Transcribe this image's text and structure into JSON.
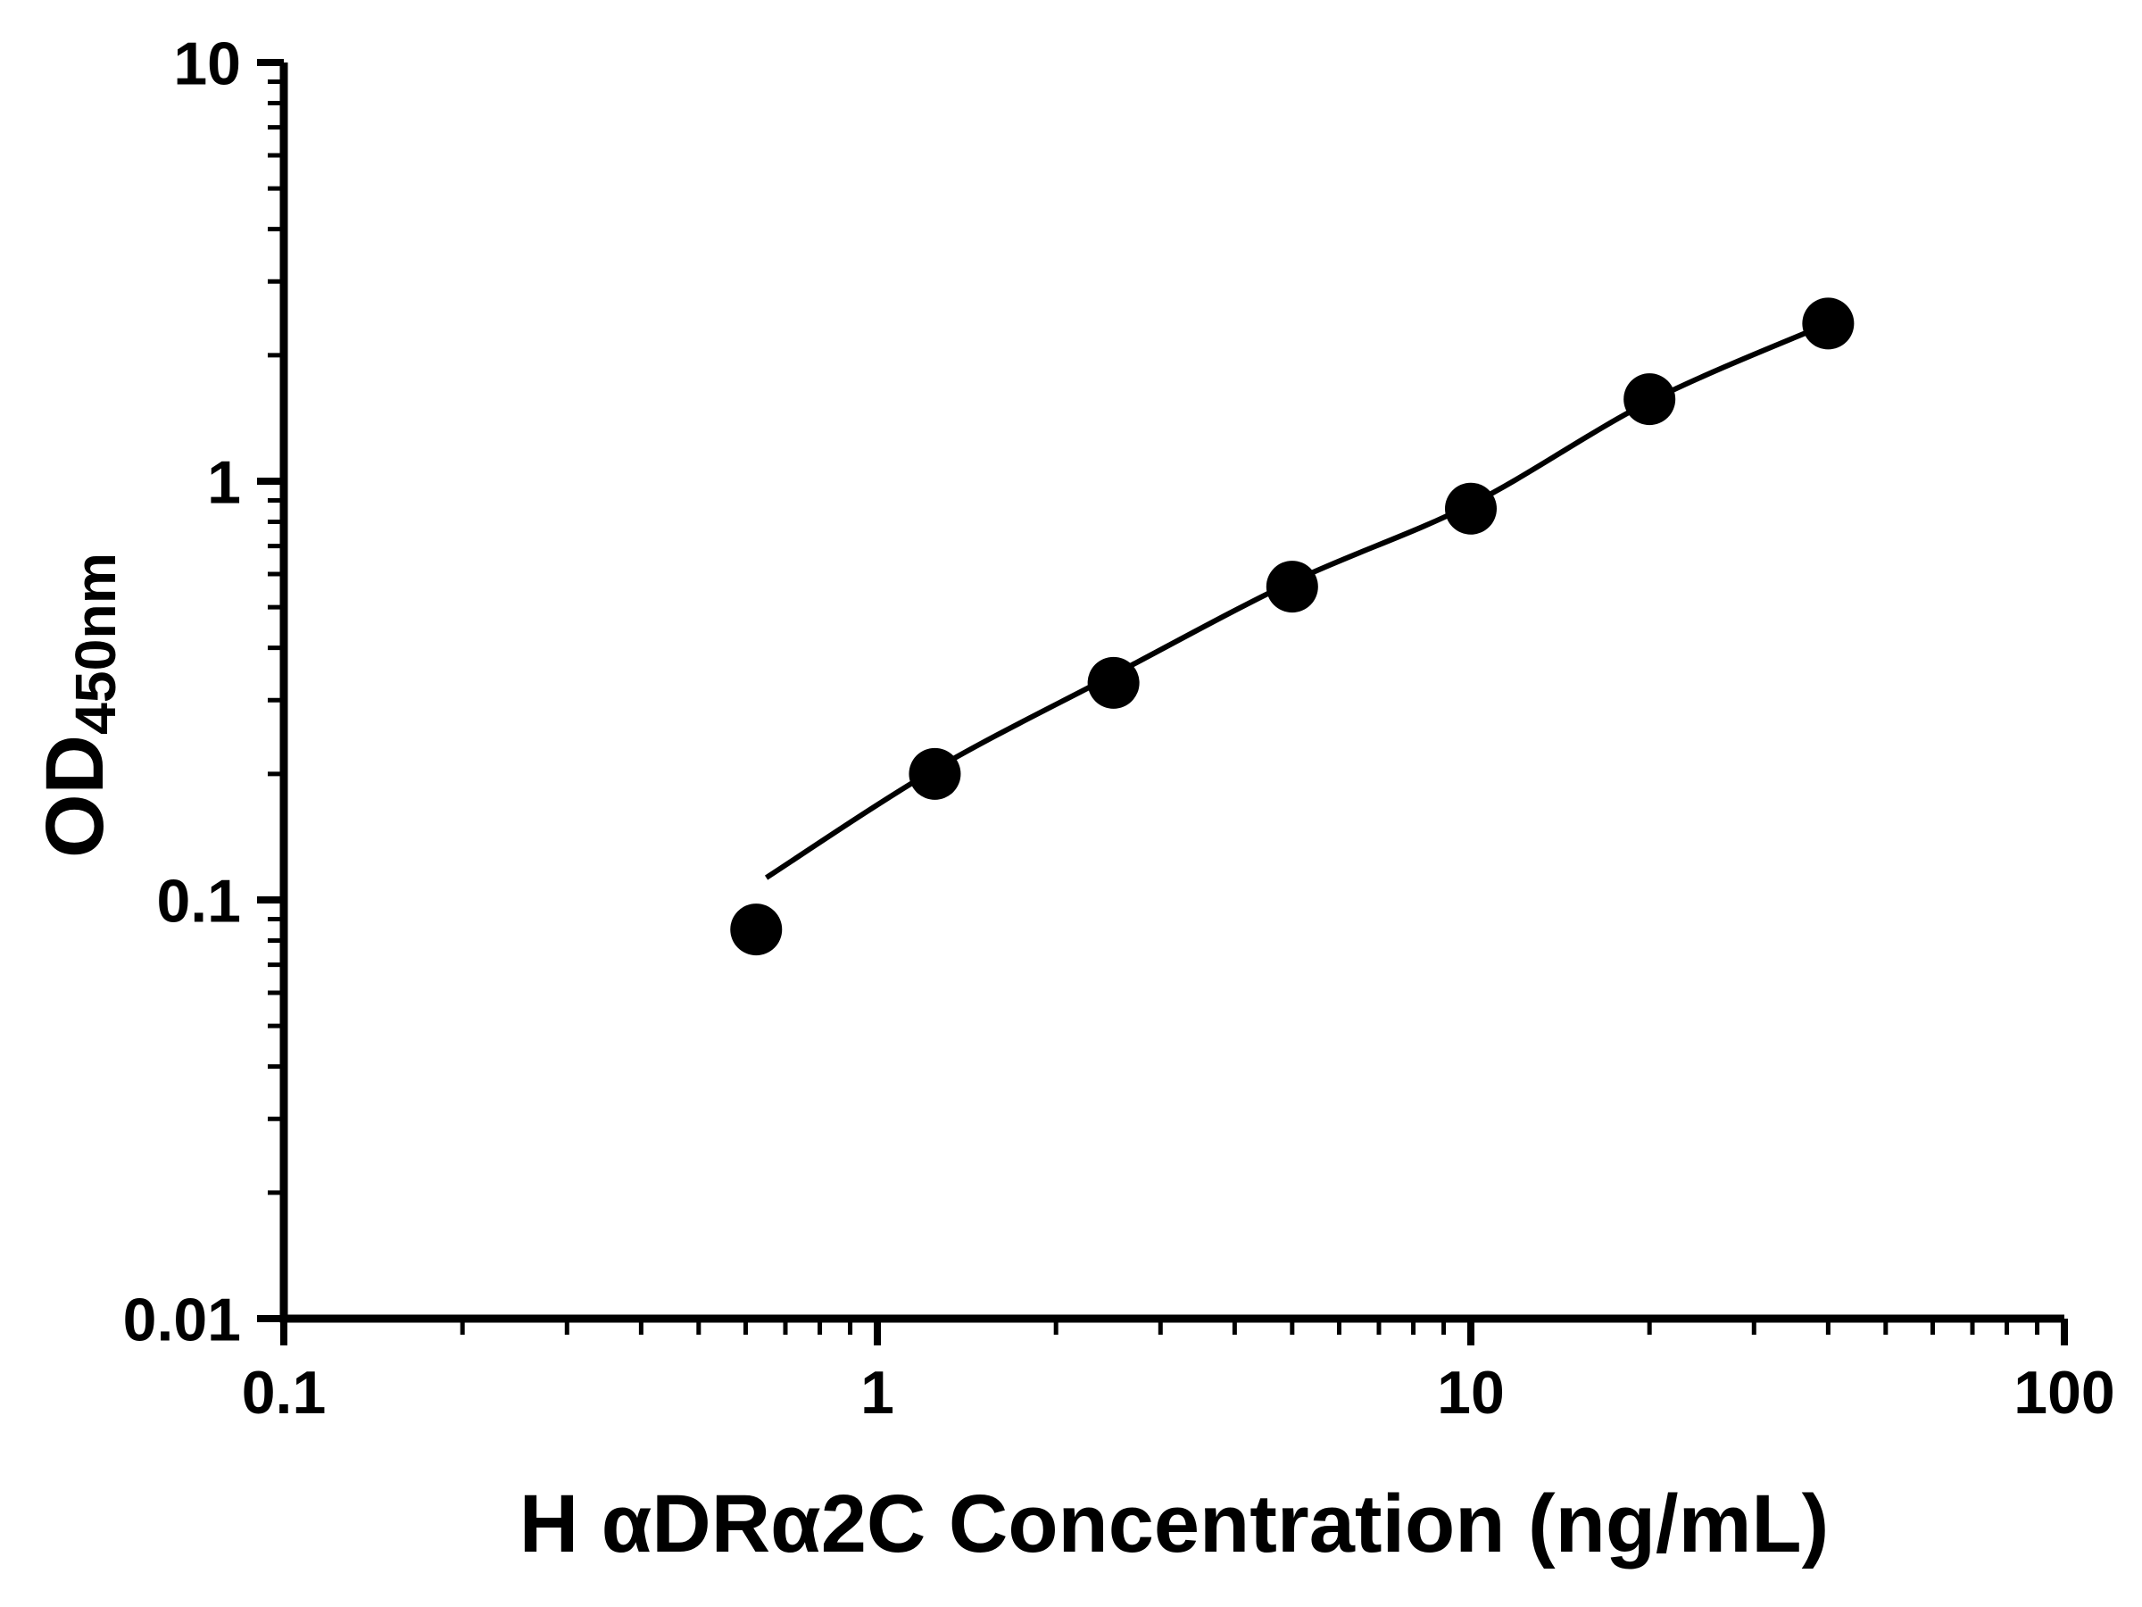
{
  "chart_data": {
    "type": "scatter",
    "title": "",
    "xlabel": "H αDRα2C Concentration (ng/mL)",
    "ylabel_main": "OD",
    "ylabel_sub": "450nm",
    "xscale": "log",
    "yscale": "log",
    "xlim": [
      0.1,
      100
    ],
    "ylim": [
      0.01,
      10
    ],
    "grid": false,
    "legend": false,
    "x_ticks": [
      {
        "value": 0.1,
        "label": "0.1"
      },
      {
        "value": 1,
        "label": "1"
      },
      {
        "value": 10,
        "label": "10"
      },
      {
        "value": 100,
        "label": "100"
      }
    ],
    "y_ticks": [
      {
        "value": 0.01,
        "label": "0.01"
      },
      {
        "value": 0.1,
        "label": "0.1"
      },
      {
        "value": 1,
        "label": "1"
      },
      {
        "value": 10,
        "label": "10"
      }
    ],
    "minor_log_ticks": true,
    "points": [
      {
        "x": 0.625,
        "y": 0.085
      },
      {
        "x": 1.25,
        "y": 0.2
      },
      {
        "x": 2.5,
        "y": 0.33
      },
      {
        "x": 5,
        "y": 0.56
      },
      {
        "x": 10,
        "y": 0.86
      },
      {
        "x": 20,
        "y": 1.57
      },
      {
        "x": 40,
        "y": 2.38
      }
    ],
    "fit_curve": [
      {
        "x": 0.65,
        "y": 0.113
      },
      {
        "x": 1.25,
        "y": 0.205
      },
      {
        "x": 2.5,
        "y": 0.345
      },
      {
        "x": 5,
        "y": 0.575
      },
      {
        "x": 10,
        "y": 0.88
      },
      {
        "x": 20,
        "y": 1.55
      },
      {
        "x": 40,
        "y": 2.38
      }
    ],
    "colors": {
      "axis": "#000000",
      "point": "#000000",
      "line": "#000000",
      "background": "#ffffff"
    }
  }
}
